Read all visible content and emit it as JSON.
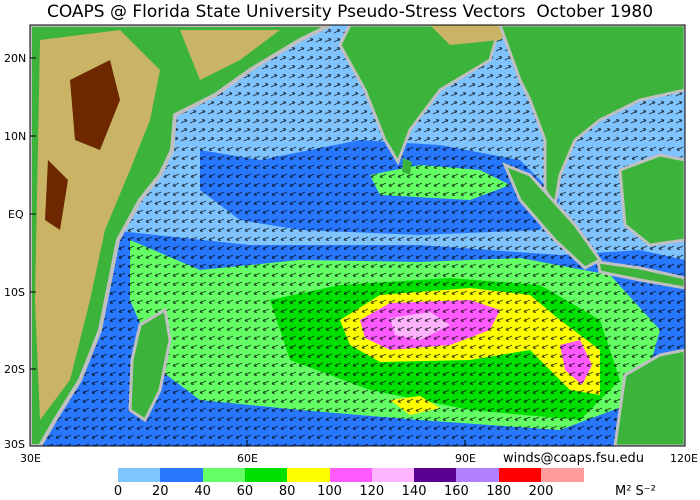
{
  "title": "COAPS @ Florida State University Pseudo-Stress Vectors  October 1980",
  "credit": "winds@coaps.fsu.edu",
  "axes": {
    "lat_labels": [
      "20N",
      "10N",
      "EQ",
      "10S",
      "20S",
      "30S"
    ],
    "lon_labels": [
      "30E",
      "60E",
      "90E",
      "120E"
    ]
  },
  "legend": {
    "units": "M² S⁻²",
    "ticks": [
      "0",
      "20",
      "40",
      "60",
      "80",
      "100",
      "120",
      "140",
      "160",
      "180",
      "200"
    ],
    "colors": [
      "#80c4ff",
      "#2878ff",
      "#64ff64",
      "#00e000",
      "#ffff00",
      "#ff5aff",
      "#ffb4ff",
      "#5a0090",
      "#b080ff",
      "#ff0000",
      "#ff9c9c"
    ]
  },
  "colors": {
    "land_low": "#3cb43c",
    "land_mid": "#c8b464",
    "land_high": "#6e2800",
    "coast": "#c0c0c0"
  }
}
